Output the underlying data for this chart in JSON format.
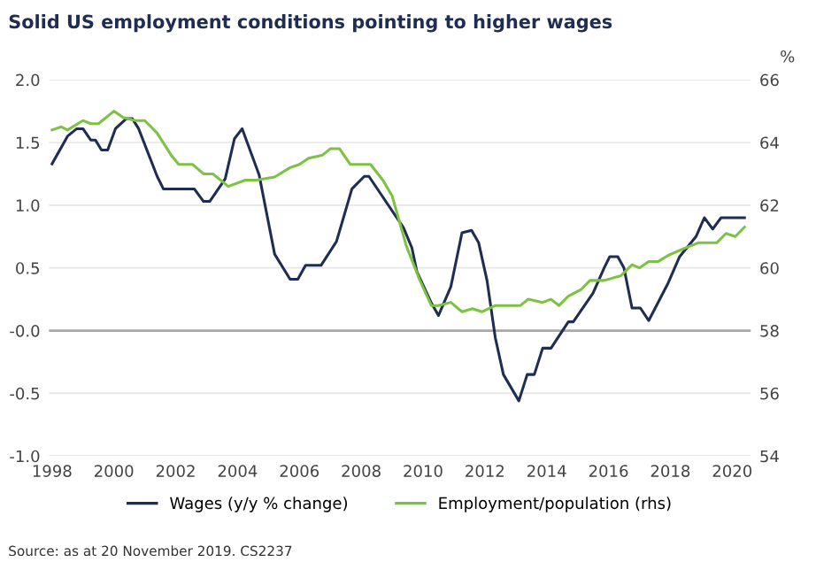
{
  "chart_data": {
    "type": "line",
    "title": "Solid US employment conditions pointing to higher wages",
    "y2label": "%",
    "series": [
      {
        "name": "Wages (y/y % change)",
        "color": "#1f2d52",
        "x": [
          1998.0,
          1998.5,
          1998.8,
          1999.0,
          1999.25,
          1999.4,
          1999.6,
          1999.8,
          2000.05,
          2000.4,
          2000.6,
          2000.8,
          2001.4,
          2001.6,
          2001.85,
          2002.6,
          2002.9,
          2003.1,
          2003.6,
          2003.9,
          2004.15,
          2004.7,
          2005.2,
          2005.7,
          2005.95,
          2006.2,
          2006.7,
          2007.2,
          2007.7,
          2008.1,
          2008.25,
          2009.37,
          2009.64,
          2009.8,
          2010.27,
          2010.5,
          2010.9,
          2011.26,
          2011.57,
          2011.8,
          2012.07,
          2012.34,
          2012.6,
          2013.1,
          2013.37,
          2013.6,
          2013.87,
          2014.14,
          2014.7,
          2014.86,
          2015.5,
          2015.86,
          2016.04,
          2016.3,
          2016.5,
          2016.76,
          2017.03,
          2017.3,
          2017.93,
          2018.3,
          2018.83,
          2019.1,
          2019.37,
          2019.64,
          2020.4
        ],
        "values": [
          1.33,
          1.55,
          1.61,
          1.61,
          1.52,
          1.52,
          1.44,
          1.44,
          1.61,
          1.69,
          1.69,
          1.61,
          1.23,
          1.13,
          1.13,
          1.13,
          1.03,
          1.03,
          1.21,
          1.53,
          1.61,
          1.24,
          0.61,
          0.41,
          0.41,
          0.52,
          0.52,
          0.71,
          1.13,
          1.23,
          1.23,
          0.82,
          0.66,
          0.47,
          0.22,
          0.12,
          0.35,
          0.78,
          0.8,
          0.7,
          0.4,
          -0.06,
          -0.35,
          -0.56,
          -0.35,
          -0.35,
          -0.14,
          -0.14,
          0.07,
          0.07,
          0.3,
          0.5,
          0.59,
          0.59,
          0.5,
          0.18,
          0.18,
          0.08,
          0.38,
          0.59,
          0.75,
          0.9,
          0.81,
          0.9,
          0.9
        ]
      },
      {
        "name": "Employment/population (rhs)",
        "color": "#7dc242",
        "axis": "y2",
        "x": [
          1998.0,
          1998.3,
          1998.5,
          1999.0,
          1999.25,
          1999.5,
          2000.0,
          2000.3,
          2000.7,
          2001.0,
          2001.4,
          2001.85,
          2002.1,
          2002.55,
          2002.9,
          2003.2,
          2003.7,
          2004.25,
          2004.6,
          2005.2,
          2005.7,
          2006.0,
          2006.3,
          2006.75,
          2007.0,
          2007.3,
          2007.65,
          2008.3,
          2008.7,
          2009.0,
          2009.46,
          2009.9,
          2010.27,
          2010.5,
          2010.9,
          2011.26,
          2011.6,
          2011.9,
          2012.34,
          2013.15,
          2013.4,
          2013.87,
          2014.14,
          2014.4,
          2014.7,
          2015.1,
          2015.4,
          2015.86,
          2016.4,
          2016.76,
          2017.0,
          2017.3,
          2017.6,
          2017.93,
          2018.4,
          2018.9,
          2019.3,
          2019.5,
          2019.8,
          2020.1,
          2020.4
        ],
        "values": [
          64.4,
          64.5,
          64.4,
          64.7,
          64.6,
          64.6,
          65.0,
          64.8,
          64.7,
          64.7,
          64.3,
          63.6,
          63.3,
          63.3,
          63.0,
          63.0,
          62.6,
          62.8,
          62.8,
          62.9,
          63.2,
          63.3,
          63.5,
          63.6,
          63.8,
          63.8,
          63.3,
          63.3,
          62.8,
          62.3,
          60.7,
          59.6,
          58.8,
          58.8,
          58.9,
          58.6,
          58.7,
          58.6,
          58.8,
          58.8,
          59.0,
          58.9,
          59.0,
          58.8,
          59.1,
          59.3,
          59.6,
          59.6,
          59.75,
          60.1,
          60.0,
          60.2,
          60.2,
          60.4,
          60.6,
          60.8,
          60.8,
          60.8,
          61.1,
          61.0,
          61.3
        ]
      }
    ],
    "xlim": [
      1997.9,
      2020.6
    ],
    "xticks": [
      1998,
      2000,
      2002,
      2004,
      2006,
      2008,
      2010,
      2012,
      2014,
      2016,
      2018,
      2020
    ],
    "ylim": [
      -1.0,
      2.0
    ],
    "yticks": [
      {
        "value": -1.0,
        "label": "-1.0"
      },
      {
        "value": -0.5,
        "label": "-0.5"
      },
      {
        "value": 0,
        "label": "-0.0"
      },
      {
        "value": 0.5,
        "label": "0.5"
      },
      {
        "value": 1.0,
        "label": "1.0"
      },
      {
        "value": 1.5,
        "label": "1.5"
      },
      {
        "value": 2.0,
        "label": "2.0"
      }
    ],
    "y2lim": [
      54,
      66
    ],
    "y2ticks": [
      54,
      56,
      58,
      60,
      62,
      64,
      66
    ],
    "ref_lines": [
      {
        "axis": "y",
        "value": 0,
        "color": "#aaaaaa"
      }
    ],
    "grid": "y",
    "legend": "bottom",
    "annotations": [
      "Source: as at 20 November 2019. CS2237"
    ]
  }
}
